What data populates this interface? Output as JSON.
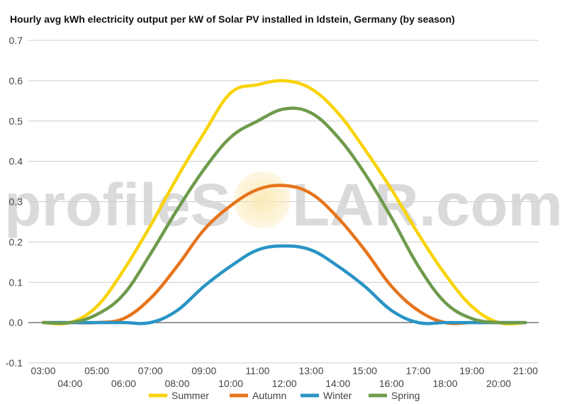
{
  "watermark": {
    "left": "profileS",
    "right": "LAR.com"
  },
  "colors": {
    "summer": "#f9d30a",
    "autumn": "#e6741c",
    "winter": "#2994c4",
    "spring": "#6e9b4c",
    "grid": "#cccccc",
    "watermark": "#d3d3d3",
    "sun": "#fae8b0"
  },
  "chart_data": {
    "type": "line",
    "title": "Hourly avg kWh electricity output per kW of Solar PV installed in Idstein, Germany (by season)",
    "xlabel": "",
    "ylabel": "",
    "ylim": [
      -0.1,
      0.7
    ],
    "yticks": [
      "-0.1",
      "0.0",
      "0.1",
      "0.2",
      "0.3",
      "0.4",
      "0.5",
      "0.6",
      "0.7"
    ],
    "categories": [
      "03:00",
      "04:00",
      "05:00",
      "06:00",
      "07:00",
      "08:00",
      "09:00",
      "10:00",
      "11:00",
      "12:00",
      "13:00",
      "14:00",
      "15:00",
      "16:00",
      "17:00",
      "18:00",
      "19:00",
      "20:00",
      "21:00"
    ],
    "grid": true,
    "legend_position": "bottom",
    "series": [
      {
        "name": "Summer",
        "values": [
          0.0,
          0.0,
          0.04,
          0.13,
          0.24,
          0.36,
          0.47,
          0.57,
          0.59,
          0.6,
          0.58,
          0.52,
          0.43,
          0.33,
          0.22,
          0.12,
          0.04,
          0.0,
          0.0
        ]
      },
      {
        "name": "Autumn",
        "values": [
          0.0,
          0.0,
          0.0,
          0.01,
          0.06,
          0.14,
          0.23,
          0.29,
          0.33,
          0.34,
          0.32,
          0.26,
          0.18,
          0.09,
          0.03,
          0.0,
          0.0,
          0.0,
          0.0
        ]
      },
      {
        "name": "Winter",
        "values": [
          0.0,
          0.0,
          0.0,
          0.0,
          0.0,
          0.03,
          0.09,
          0.14,
          0.18,
          0.19,
          0.18,
          0.14,
          0.09,
          0.03,
          0.0,
          0.0,
          0.0,
          0.0,
          0.0
        ]
      },
      {
        "name": "Spring",
        "values": [
          0.0,
          0.0,
          0.02,
          0.07,
          0.17,
          0.28,
          0.38,
          0.46,
          0.5,
          0.53,
          0.52,
          0.46,
          0.37,
          0.26,
          0.14,
          0.05,
          0.01,
          0.0,
          0.0
        ]
      }
    ]
  }
}
